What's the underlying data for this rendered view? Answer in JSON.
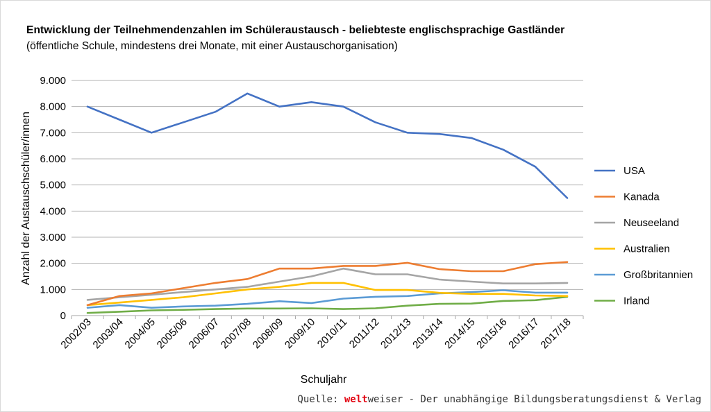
{
  "title": "Entwicklung der Teilnehmendenzahlen im Schüleraustausch - beliebteste englischsprachige Gastländer",
  "subtitle": "(öffentliche Schule, mindestens drei Monate, mit einer Austauschorganisation)",
  "source": {
    "prefix": "Quelle: ",
    "brand": "welt",
    "rest": "weiser - Der unabhängige Bildungsberatungsdienst & Verlag",
    "brand_color": "#e30613"
  },
  "chart_data": {
    "type": "line",
    "xlabel": "Schuljahr",
    "ylabel": "Anzahl der Austauschschüler/innen",
    "ylim": [
      0,
      9000
    ],
    "ytick_labels": [
      "0",
      "1.000",
      "2.000",
      "3.000",
      "4.000",
      "5.000",
      "6.000",
      "7.000",
      "8.000",
      "9.000"
    ],
    "grid": true,
    "legend_position": "right",
    "categories": [
      "2002/03",
      "2003/04",
      "2004/05",
      "2005/06",
      "2006/07",
      "2007/08",
      "2008/09",
      "2009/10",
      "2010/11",
      "2011/12",
      "2012/13",
      "2013/14",
      "2014/15",
      "2015/16",
      "2016/17",
      "2017/18"
    ],
    "series": [
      {
        "name": "USA",
        "color": "#4472c4",
        "values": [
          8000,
          7500,
          7000,
          7400,
          7800,
          8500,
          8000,
          8170,
          8000,
          7400,
          7000,
          6950,
          6800,
          6350,
          5700,
          4500
        ]
      },
      {
        "name": "Kanada",
        "color": "#ed7d31",
        "values": [
          400,
          750,
          850,
          1050,
          1250,
          1400,
          1800,
          1800,
          1900,
          1900,
          2020,
          1780,
          1700,
          1700,
          1970,
          2050
        ]
      },
      {
        "name": "Neuseeland",
        "color": "#a5a5a5",
        "values": [
          600,
          700,
          800,
          900,
          1000,
          1100,
          1300,
          1500,
          1800,
          1580,
          1580,
          1380,
          1300,
          1230,
          1230,
          1250
        ]
      },
      {
        "name": "Australien",
        "color": "#ffc000",
        "values": [
          400,
          500,
          600,
          700,
          850,
          1000,
          1100,
          1250,
          1250,
          980,
          980,
          870,
          830,
          830,
          770,
          750
        ]
      },
      {
        "name": "Großbritannien",
        "color": "#5b9bd5",
        "values": [
          300,
          400,
          300,
          350,
          380,
          450,
          550,
          480,
          650,
          720,
          750,
          850,
          900,
          970,
          880,
          880
        ]
      },
      {
        "name": "Irland",
        "color": "#70ad47",
        "values": [
          100,
          150,
          200,
          220,
          250,
          270,
          270,
          280,
          250,
          280,
          380,
          450,
          460,
          560,
          590,
          720
        ]
      }
    ]
  }
}
